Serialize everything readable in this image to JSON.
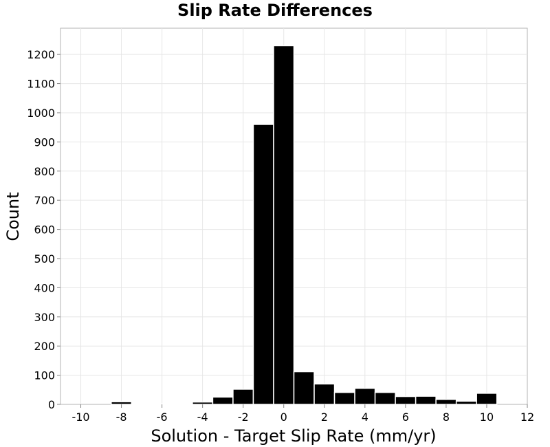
{
  "chart_data": {
    "type": "bar",
    "title": "Slip Rate Differences",
    "xlabel": "Solution - Target Slip Rate (mm/yr)",
    "ylabel": "Count",
    "xlim": [
      -11,
      12
    ],
    "ylim": [
      0,
      1290
    ],
    "xticks": [
      -10,
      -8,
      -6,
      -4,
      -2,
      0,
      2,
      4,
      6,
      8,
      10,
      12
    ],
    "xtick_labels": [
      "-10",
      "-8",
      "-6",
      "-4",
      "-2",
      "0",
      "2",
      "4",
      "6",
      "8",
      "10",
      "12"
    ],
    "yticks": [
      0,
      100,
      200,
      300,
      400,
      500,
      600,
      700,
      800,
      900,
      1000,
      1100,
      1200
    ],
    "ytick_labels": [
      "0",
      "100",
      "200",
      "300",
      "400",
      "500",
      "600",
      "700",
      "800",
      "900",
      "1000",
      "1100",
      "1200"
    ],
    "bin_width": 1,
    "bars": [
      {
        "x": -10,
        "value": 0
      },
      {
        "x": -9,
        "value": 0
      },
      {
        "x": -8,
        "value": 9
      },
      {
        "x": -7,
        "value": 2
      },
      {
        "x": -6,
        "value": 2
      },
      {
        "x": -5,
        "value": 3
      },
      {
        "x": -4,
        "value": 8
      },
      {
        "x": -3,
        "value": 25
      },
      {
        "x": -2,
        "value": 52
      },
      {
        "x": -1,
        "value": 960
      },
      {
        "x": 0,
        "value": 1230
      },
      {
        "x": 1,
        "value": 112
      },
      {
        "x": 2,
        "value": 70
      },
      {
        "x": 3,
        "value": 41
      },
      {
        "x": 4,
        "value": 55
      },
      {
        "x": 5,
        "value": 41
      },
      {
        "x": 6,
        "value": 27
      },
      {
        "x": 7,
        "value": 28
      },
      {
        "x": 8,
        "value": 17
      },
      {
        "x": 9,
        "value": 11
      },
      {
        "x": 10,
        "value": 38
      }
    ],
    "grid": true,
    "colors": {
      "bar": "#000000",
      "bar_edge": "#ffffff",
      "grid": "#e6e6e6",
      "frame": "#b3b3b3"
    }
  }
}
